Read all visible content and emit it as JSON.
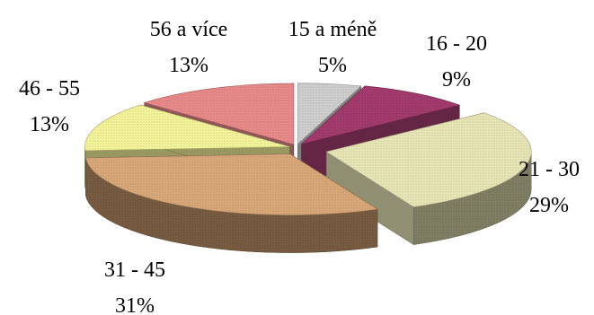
{
  "chart_data": {
    "type": "pie",
    "style": "3d-exploded",
    "title": "",
    "legend": "none",
    "categories": [
      "15 a méně",
      "16 - 20",
      "21 - 30",
      "31 - 45",
      "46 - 55",
      "56 a více"
    ],
    "values": [
      5,
      9,
      29,
      31,
      13,
      13
    ],
    "value_labels": [
      "5%",
      "9%",
      "29%",
      "31%",
      "13%",
      "13%"
    ],
    "colors": [
      "#cfcfcf",
      "#a33b6e",
      "#e8e6b6",
      "#d9a878",
      "#f4f49a",
      "#e98a8a"
    ]
  }
}
